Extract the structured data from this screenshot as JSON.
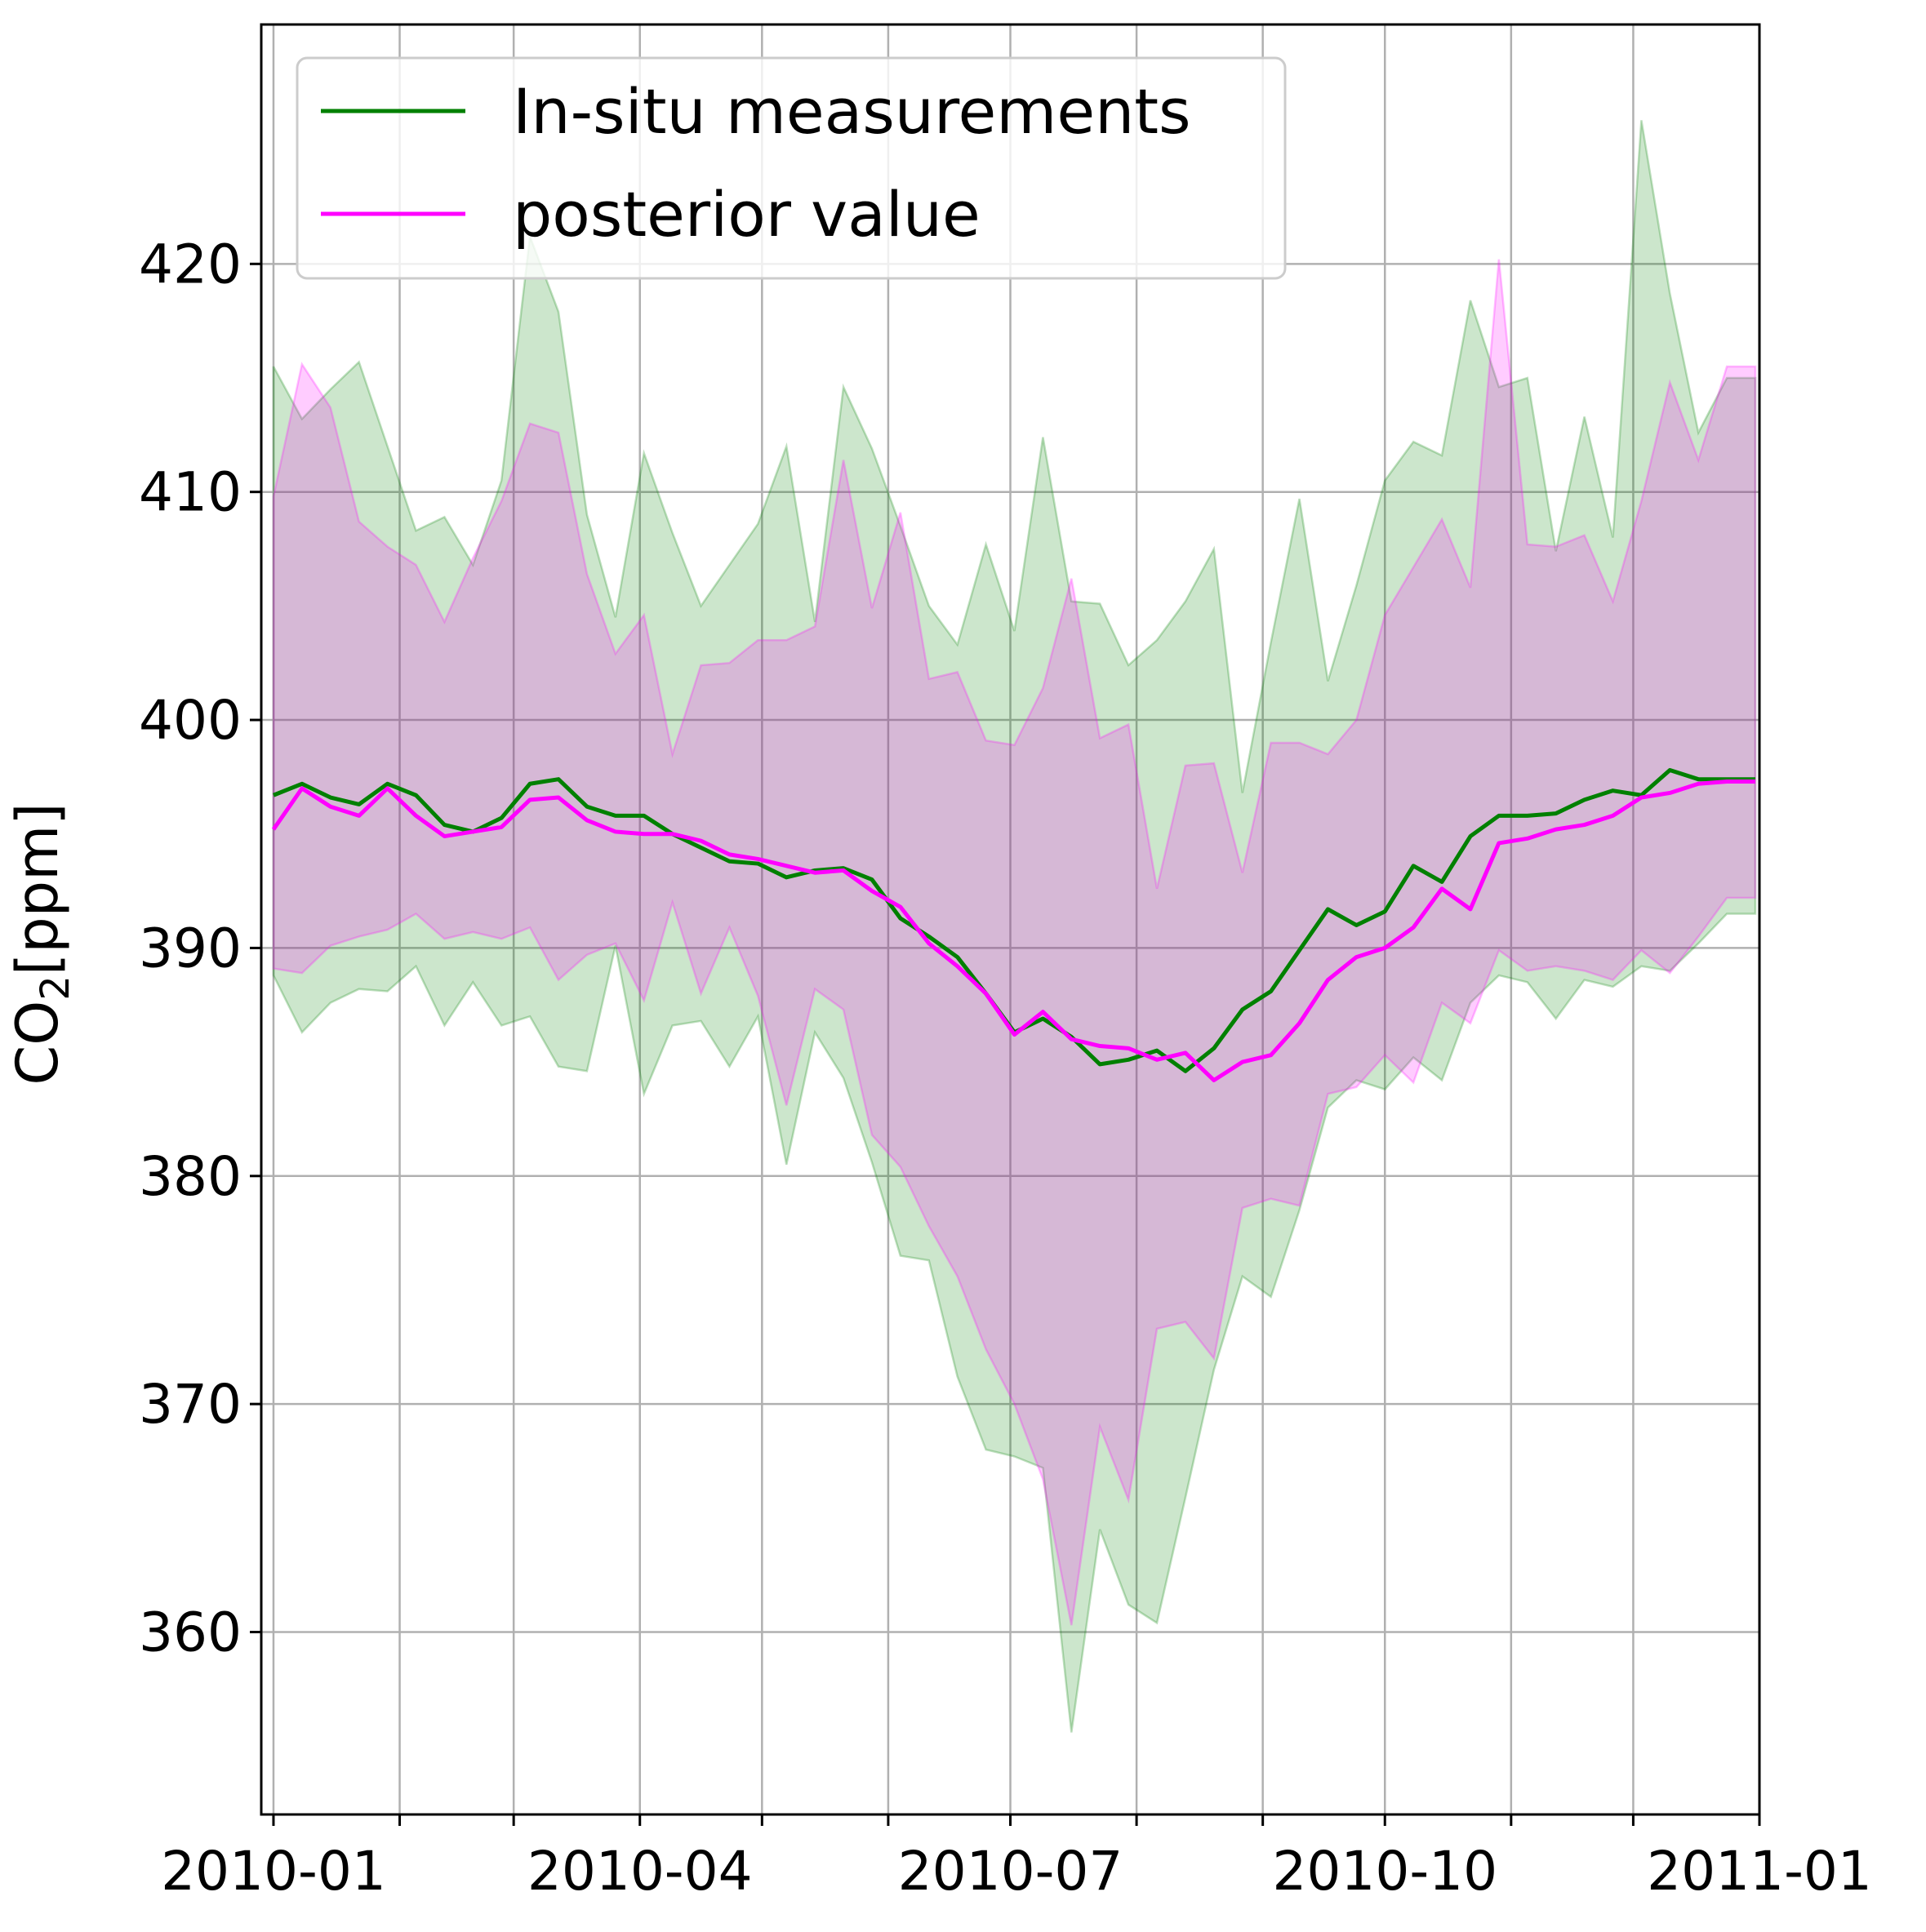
{
  "chart_data": {
    "type": "line",
    "ylabel_main": "CO",
    "ylabel_sub": "2",
    "ylabel_unit": "[ppm]",
    "ylim": [
      352,
      430.5
    ],
    "yticks": [
      360,
      370,
      380,
      390,
      400,
      410,
      420
    ],
    "xlim": [
      "2009-12-29",
      "2011-01-01"
    ],
    "xticks": [
      "2010-01",
      "2010-04",
      "2010-07",
      "2010-10",
      "2011-01"
    ],
    "xtick_dates": [
      "2010-01-01",
      "2010-04-01",
      "2010-07-01",
      "2010-10-01",
      "2011-01-01"
    ],
    "grid": true,
    "legend_position": "top-left",
    "x": [
      "2010-01-01",
      "2010-01-08",
      "2010-01-15",
      "2010-01-22",
      "2010-01-29",
      "2010-02-05",
      "2010-02-12",
      "2010-02-19",
      "2010-02-26",
      "2010-03-05",
      "2010-03-12",
      "2010-03-19",
      "2010-03-26",
      "2010-04-02",
      "2010-04-09",
      "2010-04-16",
      "2010-04-23",
      "2010-04-30",
      "2010-05-07",
      "2010-05-14",
      "2010-05-21",
      "2010-05-28",
      "2010-06-04",
      "2010-06-11",
      "2010-06-18",
      "2010-06-25",
      "2010-07-02",
      "2010-07-09",
      "2010-07-16",
      "2010-07-23",
      "2010-07-30",
      "2010-08-06",
      "2010-08-13",
      "2010-08-20",
      "2010-08-27",
      "2010-09-03",
      "2010-09-10",
      "2010-09-17",
      "2010-09-24",
      "2010-10-01",
      "2010-10-08",
      "2010-10-15",
      "2010-10-22",
      "2010-10-29",
      "2010-11-05",
      "2010-11-12",
      "2010-11-19",
      "2010-11-26",
      "2010-12-03",
      "2010-12-10",
      "2010-12-17",
      "2010-12-24",
      "2010-12-31"
    ],
    "series": [
      {
        "name": "In-situ measurements",
        "color": "#008000",
        "values": [
          396.7,
          397.2,
          396.6,
          396.3,
          397.2,
          396.7,
          395.4,
          395.1,
          395.7,
          397.2,
          397.4,
          396.2,
          395.8,
          395.8,
          395.0,
          394.4,
          393.8,
          393.7,
          393.1,
          393.4,
          393.5,
          393.0,
          391.3,
          390.5,
          389.6,
          388.0,
          386.3,
          386.9,
          386.1,
          384.9,
          385.1,
          385.5,
          384.6,
          385.6,
          387.3,
          388.1,
          389.9,
          391.7,
          391.0,
          391.6,
          393.6,
          392.9,
          394.9,
          395.8,
          395.8,
          395.9,
          396.5,
          396.9,
          396.7,
          397.8,
          397.4,
          397.4,
          397.4
        ],
        "band_upper": [
          415.5,
          413.2,
          414.5,
          415.7,
          412.0,
          408.3,
          408.9,
          406.8,
          410.5,
          421.2,
          417.9,
          409.0,
          404.5,
          411.7,
          408.2,
          405.0,
          406.8,
          408.6,
          412.0,
          404.3,
          414.6,
          411.9,
          408.5,
          405.0,
          403.3,
          407.7,
          403.9,
          412.4,
          405.2,
          405.1,
          402.4,
          403.5,
          405.2,
          407.5,
          396.8,
          403.4,
          409.7,
          401.7,
          405.9,
          410.5,
          412.2,
          411.6,
          418.4,
          414.6,
          415.0,
          407.4,
          413.3,
          408.0,
          426.3,
          418.7,
          412.6,
          415.0,
          415.0
        ],
        "band_lower": [
          388.8,
          386.3,
          387.6,
          388.2,
          388.1,
          389.2,
          386.6,
          388.5,
          386.6,
          387.0,
          384.8,
          384.6,
          390.1,
          383.6,
          386.6,
          386.8,
          384.8,
          387.0,
          380.5,
          386.3,
          384.3,
          380.6,
          376.5,
          376.3,
          371.2,
          368.0,
          367.7,
          367.2,
          355.6,
          364.5,
          361.2,
          360.4,
          365.9,
          371.5,
          375.6,
          374.7,
          378.5,
          383.0,
          384.2,
          383.8,
          385.2,
          384.2,
          387.6,
          388.8,
          388.5,
          386.9,
          388.6,
          388.3,
          389.2,
          389.0,
          390.2,
          391.5,
          391.5
        ]
      },
      {
        "name": "posterior value",
        "color": "#ff00ff",
        "values": [
          395.2,
          397.0,
          396.2,
          395.8,
          397.0,
          395.8,
          394.9,
          395.1,
          395.3,
          396.5,
          396.6,
          395.6,
          395.1,
          395.0,
          395.0,
          394.7,
          394.1,
          393.9,
          393.6,
          393.3,
          393.4,
          392.5,
          391.8,
          390.2,
          389.2,
          388.0,
          386.2,
          387.2,
          386.0,
          385.7,
          385.6,
          385.1,
          385.4,
          384.2,
          385.0,
          385.3,
          386.7,
          388.6,
          389.6,
          390.0,
          390.9,
          392.6,
          391.7,
          394.6,
          394.8,
          395.2,
          395.4,
          395.8,
          396.6,
          396.8,
          397.2,
          397.3,
          397.3
        ],
        "band_upper": [
          409.8,
          415.6,
          413.7,
          408.7,
          407.6,
          406.8,
          404.3,
          407.1,
          409.6,
          413.0,
          412.6,
          406.4,
          402.9,
          404.6,
          398.5,
          402.4,
          402.5,
          403.5,
          403.5,
          404.1,
          411.4,
          404.9,
          409.1,
          401.8,
          402.1,
          399.1,
          398.9,
          401.4,
          406.2,
          399.2,
          399.8,
          392.6,
          398.0,
          398.1,
          393.3,
          399.0,
          399.0,
          398.5,
          400.0,
          404.6,
          406.7,
          408.8,
          405.8,
          420.2,
          407.7,
          407.6,
          408.1,
          405.2,
          409.6,
          414.8,
          411.4,
          415.5,
          415.5
        ],
        "band_lower": [
          389.1,
          388.9,
          390.1,
          390.5,
          390.8,
          391.5,
          390.4,
          390.7,
          390.4,
          390.9,
          388.6,
          389.7,
          390.2,
          387.7,
          392.0,
          388.0,
          390.9,
          387.9,
          383.1,
          388.2,
          387.3,
          381.8,
          380.4,
          377.8,
          375.6,
          372.4,
          370.0,
          366.7,
          360.3,
          369.0,
          365.8,
          373.3,
          373.6,
          372.0,
          378.6,
          379.0,
          378.7,
          383.6,
          383.9,
          385.3,
          384.1,
          387.6,
          386.7,
          389.9,
          389.0,
          389.2,
          389.0,
          388.6,
          389.9,
          388.9,
          390.5,
          392.2,
          392.2
        ]
      }
    ]
  }
}
